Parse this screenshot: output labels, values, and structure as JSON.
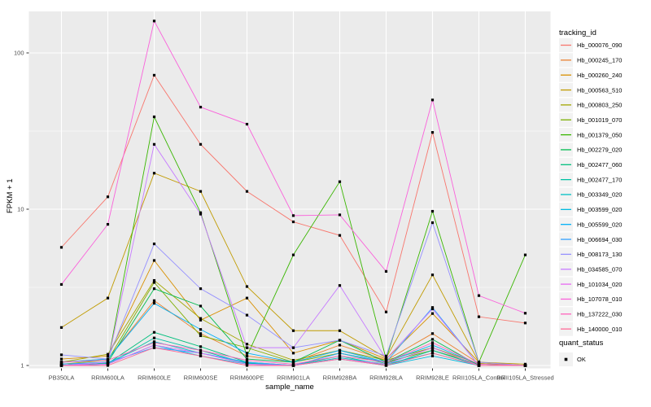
{
  "chart_data": {
    "type": "line",
    "title": "",
    "xlabel": "sample_name",
    "ylabel": "FPKM + 1",
    "y_scale": "log10",
    "y_ticks": [
      1,
      10,
      100
    ],
    "y_minor_ticks": [
      3.1623,
      31.623
    ],
    "ylim": [
      1,
      184
    ],
    "grid": "on",
    "legend_position": "right",
    "legend_title": "tracking_id",
    "marker_legend": {
      "title": "quant_status",
      "label": "OK"
    },
    "marker_shape": "black-square",
    "categories": [
      "PB350LA",
      "RRIM600LA",
      "RRIM600LE",
      "RRIM600SE",
      "RRIM600PE",
      "RRIM901LA",
      "RRIM928BA",
      "RRIM928LA",
      "RRIM928LE",
      "RRII105LA_Control",
      "RRII105LA_Stressed"
    ],
    "series": [
      {
        "name": "Hb_000076_090",
        "color": "#F8766D",
        "values": [
          5.7,
          12,
          72,
          26,
          13,
          8.3,
          6.8,
          2.2,
          31,
          2.05,
          1.87
        ]
      },
      {
        "name": "Hb_000245_170",
        "color": "#EA8331",
        "values": [
          1.05,
          1.1,
          2.6,
          1.6,
          1.15,
          1.05,
          1.35,
          1.08,
          1.6,
          1.03,
          1.0
        ]
      },
      {
        "name": "Hb_000260_240",
        "color": "#D89000",
        "values": [
          1.1,
          1.15,
          4.7,
          1.95,
          2.7,
          1.2,
          1.45,
          1.1,
          2.15,
          1.05,
          1.0
        ]
      },
      {
        "name": "Hb_000563_510",
        "color": "#C09B00",
        "values": [
          1.75,
          2.7,
          17,
          13,
          3.2,
          1.67,
          1.67,
          1.12,
          3.8,
          1.05,
          1.02
        ]
      },
      {
        "name": "Hb_000803_250",
        "color": "#A3A500",
        "values": [
          1.05,
          1.18,
          3.5,
          2.0,
          1.37,
          1.08,
          1.25,
          1.08,
          1.3,
          1.03,
          1.0
        ]
      },
      {
        "name": "Hb_001019_070",
        "color": "#7CAE00",
        "values": [
          1.02,
          1.08,
          3.4,
          1.55,
          1.3,
          1.05,
          1.2,
          1.05,
          1.25,
          1.02,
          1.0
        ]
      },
      {
        "name": "Hb_001379_050",
        "color": "#39B600",
        "values": [
          1.0,
          1.05,
          39,
          9.5,
          1.15,
          5.1,
          15,
          1.1,
          9.7,
          1.05,
          5.1
        ]
      },
      {
        "name": "Hb_002279_020",
        "color": "#00BB4E",
        "values": [
          1.0,
          1.05,
          3.1,
          2.4,
          1.1,
          1.05,
          1.45,
          1.05,
          1.47,
          1.0,
          1.0
        ]
      },
      {
        "name": "Hb_002477_060",
        "color": "#00BF7D",
        "values": [
          1.0,
          1.03,
          1.63,
          1.32,
          1.05,
          1.0,
          1.2,
          1.03,
          1.3,
          1.0,
          1.0
        ]
      },
      {
        "name": "Hb_002477_170",
        "color": "#00C1A3",
        "values": [
          1.0,
          1.02,
          1.5,
          1.25,
          1.03,
          1.0,
          1.15,
          1.0,
          1.25,
          1.0,
          1.0
        ]
      },
      {
        "name": "Hb_003349_020",
        "color": "#00BFC4",
        "values": [
          1.02,
          1.04,
          1.42,
          1.2,
          1.04,
          1.0,
          1.12,
          1.02,
          1.2,
          1.0,
          1.0
        ]
      },
      {
        "name": "Hb_003599_020",
        "color": "#00BAE0",
        "values": [
          1.0,
          1.02,
          1.35,
          1.15,
          1.02,
          1.0,
          1.1,
          1.0,
          1.15,
          1.0,
          1.0
        ]
      },
      {
        "name": "Hb_005599_020",
        "color": "#00B0F6",
        "values": [
          1.05,
          1.1,
          2.5,
          1.7,
          1.2,
          1.05,
          1.25,
          1.05,
          1.35,
          1.02,
          1.0
        ]
      },
      {
        "name": "Hb_006694_030",
        "color": "#35A2FF",
        "values": [
          1.02,
          1.05,
          1.3,
          1.2,
          1.05,
          1.0,
          1.2,
          1.05,
          2.35,
          1.0,
          1.0
        ]
      },
      {
        "name": "Hb_008173_130",
        "color": "#9590FF",
        "values": [
          1.17,
          1.1,
          6.0,
          3.1,
          2.1,
          1.3,
          1.45,
          1.15,
          8.2,
          1.05,
          1.0
        ]
      },
      {
        "name": "Hb_034585_070",
        "color": "#C77CFF",
        "values": [
          1.0,
          1.05,
          26,
          9.3,
          1.3,
          1.3,
          3.25,
          1.1,
          2.3,
          1.0,
          1.0
        ]
      },
      {
        "name": "Hb_101034_020",
        "color": "#E76BF3",
        "values": [
          1.0,
          1.02,
          1.35,
          1.2,
          1.02,
          1.0,
          1.1,
          1.02,
          1.3,
          1.0,
          1.0
        ]
      },
      {
        "name": "Hb_107078_010",
        "color": "#FA62DB",
        "values": [
          3.3,
          8.0,
          160,
          45,
          35,
          9.1,
          9.2,
          4.0,
          50,
          2.8,
          2.16
        ]
      },
      {
        "name": "Hb_137222_030",
        "color": "#FF62BC",
        "values": [
          1.05,
          1.08,
          1.4,
          1.25,
          1.08,
          1.02,
          1.15,
          1.05,
          1.4,
          1.02,
          1.0
        ]
      },
      {
        "name": "Hb_140000_010",
        "color": "#FF6A98",
        "values": [
          1.0,
          1.0,
          1.3,
          1.15,
          1.0,
          1.0,
          1.1,
          1.0,
          1.2,
          1.0,
          1.0
        ]
      }
    ],
    "colors": {
      "panel_bg": "#EBEBEB",
      "grid": "#FFFFFF",
      "tick_text": "#4D4D4D",
      "axis_text": "#000000",
      "legend_key_bg": "#F2F2F2",
      "marker": "#000000",
      "tick_mark": "#333333"
    }
  }
}
